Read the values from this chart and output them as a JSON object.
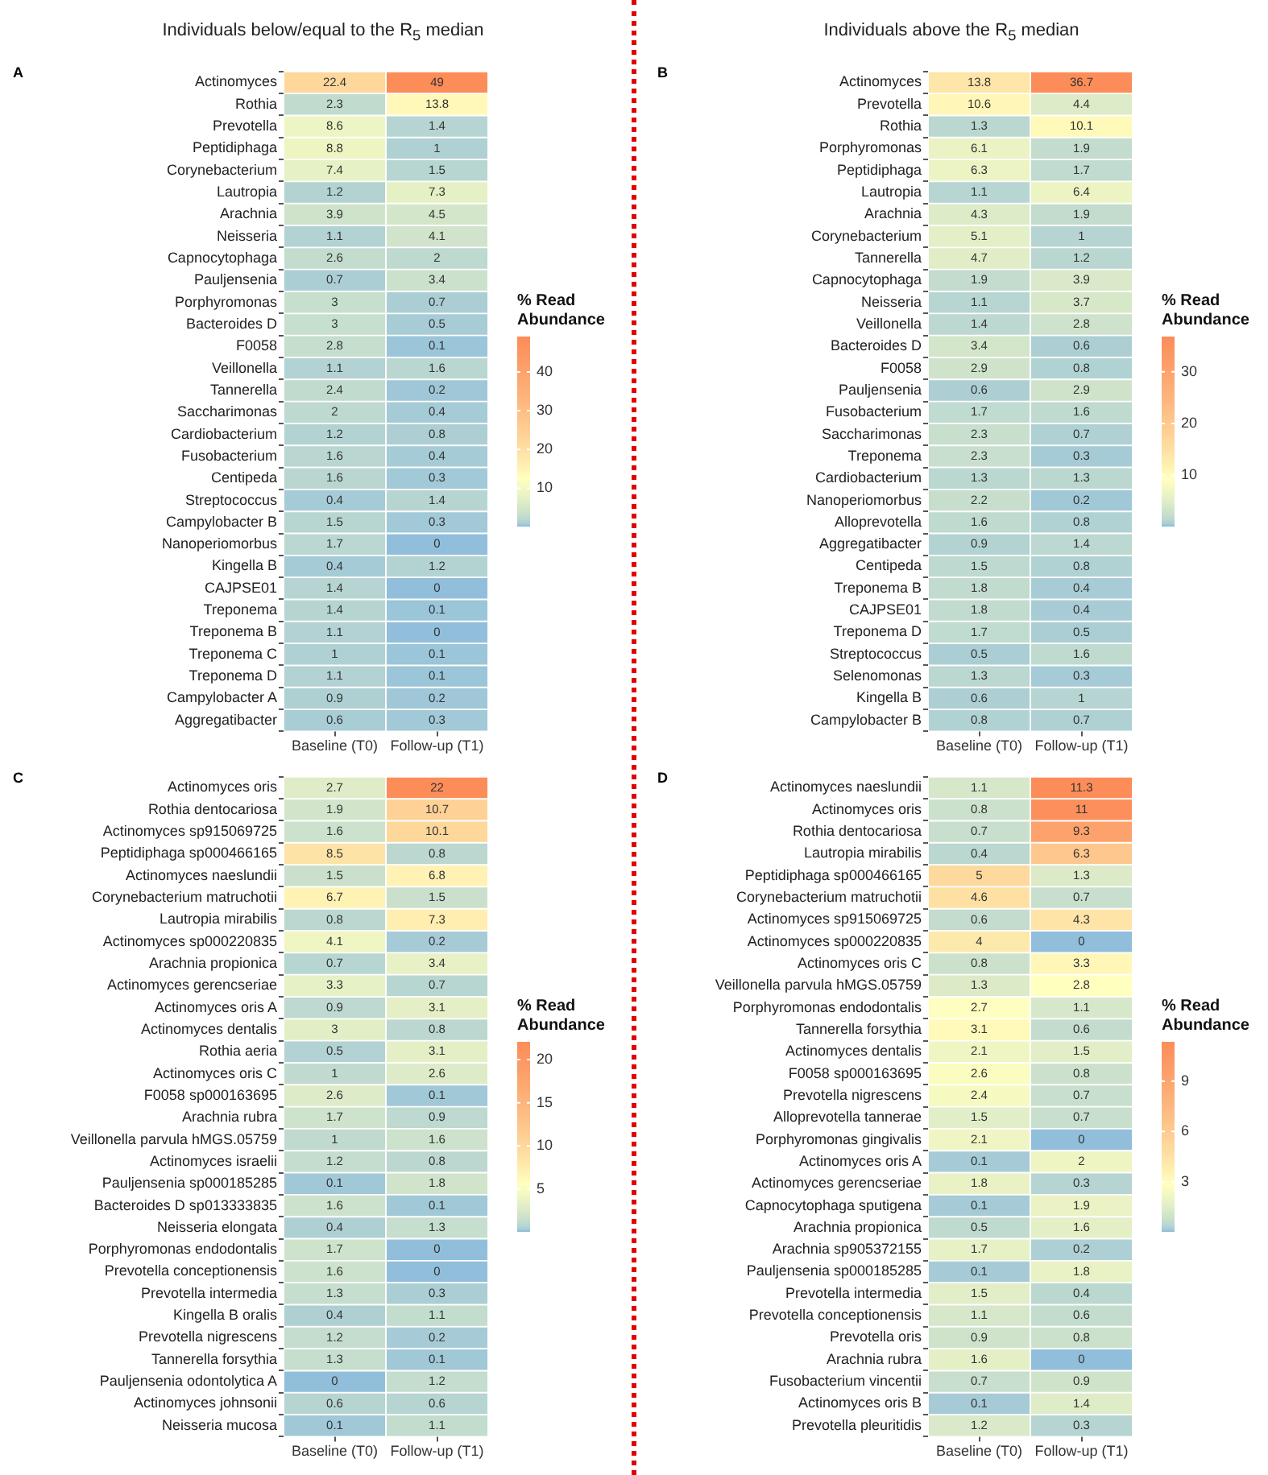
{
  "chart_data": [
    {
      "type": "heatmap",
      "title": "Individuals below/equal to the R$_{5}$ median",
      "annotations": [
        "A"
      ],
      "categories": [
        "Baseline (T0)",
        "Follow-up (T1)"
      ],
      "y_categories": [
        "Actinomyces",
        "Rothia",
        "Prevotella",
        "Peptidiphaga",
        "Corynebacterium",
        "Lautropia",
        "Arachnia",
        "Neisseria",
        "Capnocytophaga",
        "Pauljensenia",
        "Porphyromonas",
        "Bacteroides D",
        "F0058",
        "Veillonella",
        "Tannerella",
        "Saccharimonas",
        "Cardiobacterium",
        "Fusobacterium",
        "Centipeda",
        "Streptococcus",
        "Campylobacter B",
        "Nanoperiomorbus",
        "Kingella B",
        "CAJPSE01",
        "Treponema",
        "Treponema B",
        "Treponema C",
        "Treponema D",
        "Campylobacter A",
        "Aggregatibacter"
      ],
      "cells": [
        [
          22.4,
          49
        ],
        [
          2.3,
          13.8
        ],
        [
          8.6,
          1.4
        ],
        [
          8.8,
          1
        ],
        [
          7.4,
          1.5
        ],
        [
          1.2,
          7.3
        ],
        [
          3.9,
          4.5
        ],
        [
          1.1,
          4.1
        ],
        [
          2.6,
          2
        ],
        [
          0.7,
          3.4
        ],
        [
          3,
          0.7
        ],
        [
          3,
          0.5
        ],
        [
          2.8,
          0.1
        ],
        [
          1.1,
          1.6
        ],
        [
          2.4,
          0.2
        ],
        [
          2,
          0.4
        ],
        [
          1.2,
          0.8
        ],
        [
          1.6,
          0.4
        ],
        [
          1.6,
          0.3
        ],
        [
          0.4,
          1.4
        ],
        [
          1.5,
          0.3
        ],
        [
          1.7,
          0
        ],
        [
          0.4,
          1.2
        ],
        [
          1.4,
          0
        ],
        [
          1.4,
          0.1
        ],
        [
          1.1,
          0
        ],
        [
          1,
          0.1
        ],
        [
          1.1,
          0.1
        ],
        [
          0.9,
          0.2
        ],
        [
          0.6,
          0.3
        ]
      ],
      "data_labels": true,
      "clabel": "% Read Abundance",
      "clim": [
        0,
        49
      ],
      "cticks": [
        10,
        20,
        30,
        40
      ]
    },
    {
      "type": "heatmap",
      "title": "Individuals above the R$_{5}$ median",
      "annotations": [
        "B"
      ],
      "categories": [
        "Baseline (T0)",
        "Follow-up (T1)"
      ],
      "y_categories": [
        "Actinomyces",
        "Prevotella",
        "Rothia",
        "Porphyromonas",
        "Peptidiphaga",
        "Lautropia",
        "Arachnia",
        "Corynebacterium",
        "Tannerella",
        "Capnocytophaga",
        "Neisseria",
        "Veillonella",
        "Bacteroides D",
        "F0058",
        "Pauljensenia",
        "Fusobacterium",
        "Saccharimonas",
        "Treponema",
        "Cardiobacterium",
        "Nanoperiomorbus",
        "Alloprevotella",
        "Aggregatibacter",
        "Centipeda",
        "Treponema B",
        "CAJPSE01",
        "Treponema D",
        "Streptococcus",
        "Selenomonas",
        "Kingella B",
        "Campylobacter B"
      ],
      "cells": [
        [
          13.8,
          36.7
        ],
        [
          10.6,
          4.4
        ],
        [
          1.3,
          10.1
        ],
        [
          6.1,
          1.9
        ],
        [
          6.3,
          1.7
        ],
        [
          1.1,
          6.4
        ],
        [
          4.3,
          1.9
        ],
        [
          5.1,
          1
        ],
        [
          4.7,
          1.2
        ],
        [
          1.9,
          3.9
        ],
        [
          1.1,
          3.7
        ],
        [
          1.4,
          2.8
        ],
        [
          3.4,
          0.6
        ],
        [
          2.9,
          0.8
        ],
        [
          0.6,
          2.9
        ],
        [
          1.7,
          1.6
        ],
        [
          2.3,
          0.7
        ],
        [
          2.3,
          0.3
        ],
        [
          1.3,
          1.3
        ],
        [
          2.2,
          0.2
        ],
        [
          1.6,
          0.8
        ],
        [
          0.9,
          1.4
        ],
        [
          1.5,
          0.8
        ],
        [
          1.8,
          0.4
        ],
        [
          1.8,
          0.4
        ],
        [
          1.7,
          0.5
        ],
        [
          0.5,
          1.6
        ],
        [
          1.3,
          0.3
        ],
        [
          0.6,
          1
        ],
        [
          0.8,
          0.7
        ]
      ],
      "data_labels": true,
      "clabel": "% Read Abundance",
      "clim": [
        0,
        36.7
      ],
      "cticks": [
        10,
        20,
        30
      ]
    },
    {
      "type": "heatmap",
      "annotations": [
        "C"
      ],
      "categories": [
        "Baseline (T0)",
        "Follow-up (T1)"
      ],
      "y_categories": [
        "Actinomyces oris",
        "Rothia dentocariosa",
        "Actinomyces sp915069725",
        "Peptidiphaga sp000466165",
        "Actinomyces naeslundii",
        "Corynebacterium matruchotii",
        "Lautropia mirabilis",
        "Actinomyces sp000220835",
        "Arachnia propionica",
        "Actinomyces gerencseriae",
        "Actinomyces oris A",
        "Actinomyces dentalis",
        "Rothia aeria",
        "Actinomyces oris C",
        "F0058 sp000163695",
        "Arachnia rubra",
        "Veillonella parvula hMGS.05759",
        "Actinomyces israelii",
        "Pauljensenia sp000185285",
        "Bacteroides D sp013333835",
        "Neisseria elongata",
        "Porphyromonas endodontalis",
        "Prevotella conceptionensis",
        "Prevotella intermedia",
        "Kingella B oralis",
        "Prevotella nigrescens",
        "Tannerella forsythia",
        "Pauljensenia odontolytica A",
        "Actinomyces johnsonii",
        "Neisseria mucosa"
      ],
      "cells": [
        [
          2.7,
          22
        ],
        [
          1.9,
          10.7
        ],
        [
          1.6,
          10.1
        ],
        [
          8.5,
          0.8
        ],
        [
          1.5,
          6.8
        ],
        [
          6.7,
          1.5
        ],
        [
          0.8,
          7.3
        ],
        [
          4.1,
          0.2
        ],
        [
          0.7,
          3.4
        ],
        [
          3.3,
          0.7
        ],
        [
          0.9,
          3.1
        ],
        [
          3,
          0.8
        ],
        [
          0.5,
          3.1
        ],
        [
          1,
          2.6
        ],
        [
          2.6,
          0.1
        ],
        [
          1.7,
          0.9
        ],
        [
          1,
          1.6
        ],
        [
          1.2,
          0.8
        ],
        [
          0.1,
          1.8
        ],
        [
          1.6,
          0.1
        ],
        [
          0.4,
          1.3
        ],
        [
          1.7,
          0
        ],
        [
          1.6,
          0
        ],
        [
          1.3,
          0.3
        ],
        [
          0.4,
          1.1
        ],
        [
          1.2,
          0.2
        ],
        [
          1.3,
          0.1
        ],
        [
          0,
          1.2
        ],
        [
          0.6,
          0.6
        ],
        [
          0.1,
          1.1
        ]
      ],
      "data_labels": true,
      "clabel": "% Read Abundance",
      "clim": [
        0,
        22
      ],
      "cticks": [
        5,
        10,
        15,
        20
      ]
    },
    {
      "type": "heatmap",
      "annotations": [
        "D"
      ],
      "categories": [
        "Baseline (T0)",
        "Follow-up (T1)"
      ],
      "y_categories": [
        "Actinomyces naeslundii",
        "Actinomyces oris",
        "Rothia dentocariosa",
        "Lautropia mirabilis",
        "Peptidiphaga sp000466165",
        "Corynebacterium matruchotii",
        "Actinomyces sp915069725",
        "Actinomyces sp000220835",
        "Actinomyces oris C",
        "Veillonella parvula hMGS.05759",
        "Porphyromonas endodontalis",
        "Tannerella forsythia",
        "Actinomyces dentalis",
        "F0058 sp000163695",
        "Prevotella nigrescens",
        "Alloprevotella tannerae",
        "Porphyromonas gingivalis",
        "Actinomyces oris A",
        "Actinomyces gerencseriae",
        "Capnocytophaga sputigena",
        "Arachnia propionica",
        "Arachnia sp905372155",
        "Pauljensenia sp000185285",
        "Prevotella intermedia",
        "Prevotella conceptionensis",
        "Prevotella oris",
        "Arachnia rubra",
        "Fusobacterium vincentii",
        "Actinomyces oris B",
        "Prevotella pleuritidis"
      ],
      "cells": [
        [
          1.1,
          11.3
        ],
        [
          0.8,
          11
        ],
        [
          0.7,
          9.3
        ],
        [
          0.4,
          6.3
        ],
        [
          5,
          1.3
        ],
        [
          4.6,
          0.7
        ],
        [
          0.6,
          4.3
        ],
        [
          4,
          0
        ],
        [
          0.8,
          3.3
        ],
        [
          1.3,
          2.8
        ],
        [
          2.7,
          1.1
        ],
        [
          3.1,
          0.6
        ],
        [
          2.1,
          1.5
        ],
        [
          2.6,
          0.8
        ],
        [
          2.4,
          0.7
        ],
        [
          1.5,
          0.7
        ],
        [
          2.1,
          0
        ],
        [
          0.1,
          2
        ],
        [
          1.8,
          0.3
        ],
        [
          0.1,
          1.9
        ],
        [
          0.5,
          1.6
        ],
        [
          1.7,
          0.2
        ],
        [
          0.1,
          1.8
        ],
        [
          1.5,
          0.4
        ],
        [
          1.1,
          0.6
        ],
        [
          0.9,
          0.8
        ],
        [
          1.6,
          0
        ],
        [
          0.7,
          0.9
        ],
        [
          0.1,
          1.4
        ],
        [
          1.2,
          0.3
        ]
      ],
      "data_labels": true,
      "clabel": "% Read Abundance",
      "clim": [
        0,
        11.3
      ],
      "cticks": [
        3,
        6,
        9
      ]
    }
  ]
}
